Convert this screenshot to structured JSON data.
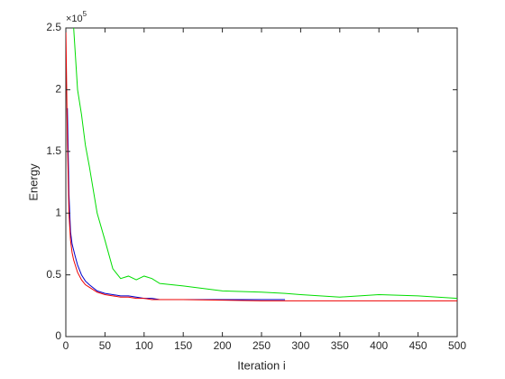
{
  "chart_data": {
    "type": "line",
    "xlabel": "Iteration i",
    "ylabel": "Energy",
    "y_multiplier": {
      "base": "×10",
      "exponent": "5"
    },
    "x": [
      0,
      2,
      4,
      6,
      8,
      10,
      12,
      15,
      20,
      25,
      30,
      40,
      50,
      60,
      70,
      80,
      90,
      100,
      110,
      120,
      150,
      200,
      250,
      280,
      300,
      350,
      400,
      450,
      500
    ],
    "series": [
      {
        "color": "#00dd00",
        "values": [
          null,
          null,
          null,
          null,
          null,
          2.5,
          2.3,
          2.0,
          1.8,
          1.55,
          1.38,
          1.0,
          0.78,
          0.55,
          0.47,
          0.49,
          0.46,
          0.49,
          0.47,
          0.43,
          0.41,
          0.37,
          0.36,
          0.35,
          0.34,
          0.32,
          0.34,
          0.33,
          0.31
        ]
      },
      {
        "color": "#0000cc",
        "values": [
          null,
          1.85,
          1.15,
          0.85,
          0.75,
          0.7,
          0.65,
          0.58,
          0.5,
          0.45,
          0.42,
          0.37,
          0.35,
          0.34,
          0.33,
          0.33,
          0.32,
          0.31,
          0.31,
          0.3,
          0.3,
          0.3,
          0.3,
          0.3,
          null,
          null,
          null,
          null,
          null
        ]
      },
      {
        "color": "#ee0000",
        "values": [
          2.5,
          1.6,
          1.0,
          0.78,
          0.68,
          0.62,
          0.58,
          0.52,
          0.46,
          0.42,
          0.4,
          0.36,
          0.34,
          0.33,
          0.32,
          0.32,
          0.31,
          0.31,
          0.3,
          0.3,
          0.3,
          0.295,
          0.29,
          0.29,
          0.29,
          0.29,
          0.29,
          0.29,
          0.29
        ]
      }
    ],
    "xlim": [
      0,
      500
    ],
    "xticks": [
      0,
      50,
      100,
      150,
      200,
      250,
      300,
      350,
      400,
      450,
      500
    ],
    "ylim": [
      0,
      2.5
    ],
    "yticks": [
      0,
      0.5,
      1,
      1.5,
      2,
      2.5
    ],
    "grid": false
  }
}
